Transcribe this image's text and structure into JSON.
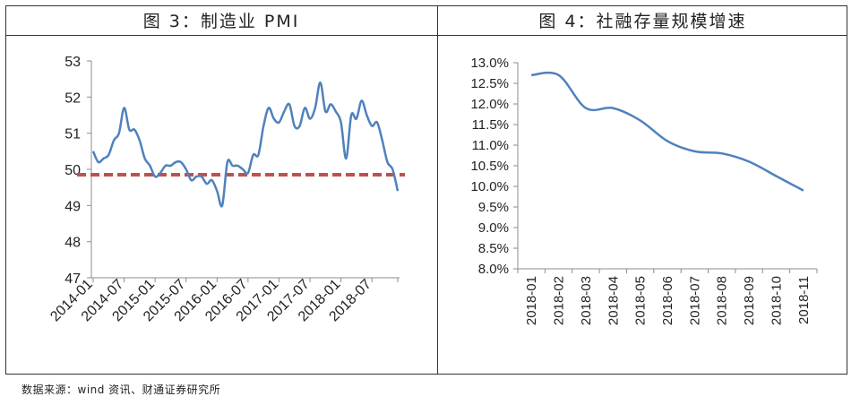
{
  "panels": {
    "left_title": "图 3：制造业 PMI",
    "right_title": "图 4：社融存量规模增速"
  },
  "source": "数据来源：wind 资讯、财通证券研究所",
  "colors": {
    "line": "#4f81bd",
    "reference": "#c0504d",
    "axis": "#8c8c8c",
    "frame": "#333333"
  },
  "chart_data": [
    {
      "type": "line",
      "title": "图 3：制造业 PMI",
      "ylim": [
        47,
        53
      ],
      "yticks": [
        "47",
        "48",
        "49",
        "50",
        "51",
        "52",
        "53"
      ],
      "x_label_ticks": [
        "2014-01",
        "2014-07",
        "2015-01",
        "2015-07",
        "2016-01",
        "2016-07",
        "2017-01",
        "2017-07",
        "2018-01",
        "2018-07"
      ],
      "x": [
        "2014-01",
        "2014-02",
        "2014-03",
        "2014-04",
        "2014-05",
        "2014-06",
        "2014-07",
        "2014-08",
        "2014-09",
        "2014-10",
        "2014-11",
        "2014-12",
        "2015-01",
        "2015-02",
        "2015-03",
        "2015-04",
        "2015-05",
        "2015-06",
        "2015-07",
        "2015-08",
        "2015-09",
        "2015-10",
        "2015-11",
        "2015-12",
        "2016-01",
        "2016-02",
        "2016-03",
        "2016-04",
        "2016-05",
        "2016-06",
        "2016-07",
        "2016-08",
        "2016-09",
        "2016-10",
        "2016-11",
        "2016-12",
        "2017-01",
        "2017-02",
        "2017-03",
        "2017-04",
        "2017-05",
        "2017-06",
        "2017-07",
        "2017-08",
        "2017-09",
        "2017-10",
        "2017-11",
        "2017-12",
        "2018-01",
        "2018-02",
        "2018-03",
        "2018-04",
        "2018-05",
        "2018-06",
        "2018-07",
        "2018-08",
        "2018-09",
        "2018-10",
        "2018-11",
        "2018-12"
      ],
      "series": [
        {
          "values": [
            50.5,
            50.2,
            50.3,
            50.4,
            50.8,
            51.0,
            51.7,
            51.1,
            51.1,
            50.8,
            50.3,
            50.1,
            49.8,
            49.9,
            50.1,
            50.1,
            50.2,
            50.2,
            50.0,
            49.7,
            49.8,
            49.8,
            49.6,
            49.7,
            49.4,
            49.0,
            50.2,
            50.1,
            50.1,
            50.0,
            49.9,
            50.4,
            50.4,
            51.2,
            51.7,
            51.4,
            51.3,
            51.6,
            51.8,
            51.2,
            51.2,
            51.7,
            51.4,
            51.7,
            52.4,
            51.6,
            51.8,
            51.6,
            51.3,
            50.3,
            51.5,
            51.4,
            51.9,
            51.5,
            51.2,
            51.3,
            50.8,
            50.2,
            50.0,
            49.4
          ]
        }
      ],
      "reference_line": 49.85
    },
    {
      "type": "line",
      "title": "图 4：社融存量规模增速",
      "ylim": [
        8.0,
        13.0
      ],
      "yticks": [
        "8.0%",
        "8.5%",
        "9.0%",
        "9.5%",
        "10.0%",
        "10.5%",
        "11.0%",
        "11.5%",
        "12.0%",
        "12.5%",
        "13.0%"
      ],
      "categories": [
        "2018-01",
        "2018-02",
        "2018-03",
        "2018-04",
        "2018-05",
        "2018-06",
        "2018-07",
        "2018-08",
        "2018-09",
        "2018-10",
        "2018-11"
      ],
      "series": [
        {
          "values": [
            12.7,
            12.7,
            11.9,
            11.9,
            11.6,
            11.1,
            10.85,
            10.8,
            10.6,
            10.25,
            9.9
          ]
        }
      ]
    }
  ]
}
